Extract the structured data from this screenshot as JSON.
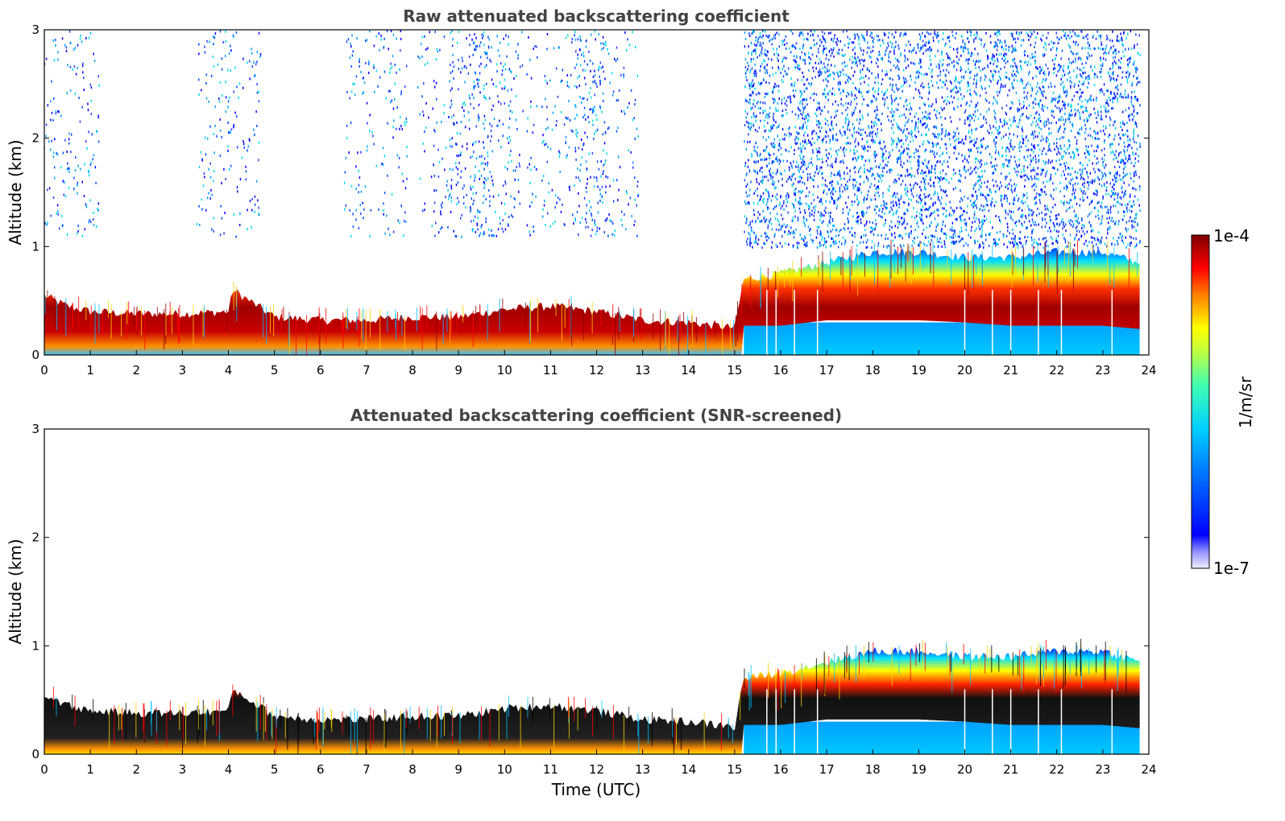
{
  "chart_data": [
    {
      "type": "heatmap",
      "title": "Raw attenuated backscattering coefficient",
      "xlabel": "",
      "ylabel": "Altitude (km)",
      "xlim": [
        0,
        24
      ],
      "ylim": [
        0,
        3
      ],
      "xticks": [
        "0",
        "1",
        "2",
        "3",
        "4",
        "5",
        "6",
        "7",
        "8",
        "9",
        "10",
        "11",
        "12",
        "13",
        "14",
        "15",
        "16",
        "17",
        "18",
        "19",
        "20",
        "21",
        "22",
        "23",
        "24"
      ],
      "yticks": [
        "0",
        "1",
        "2",
        "3"
      ],
      "screened": false
    },
    {
      "type": "heatmap",
      "title": "Attenuated backscattering coefficient (SNR-screened)",
      "xlabel": "Time (UTC)",
      "ylabel": "Altitude (km)",
      "xlim": [
        0,
        24
      ],
      "ylim": [
        0,
        3
      ],
      "xticks": [
        "0",
        "1",
        "2",
        "3",
        "4",
        "5",
        "6",
        "7",
        "8",
        "9",
        "10",
        "11",
        "12",
        "13",
        "14",
        "15",
        "16",
        "17",
        "18",
        "19",
        "20",
        "21",
        "22",
        "23",
        "24"
      ],
      "yticks": [
        "0",
        "1",
        "2",
        "3"
      ],
      "screened": true
    }
  ],
  "colorbar": {
    "max_label": "1e-4",
    "min_label": "1e-7",
    "unit_label": "1/m/sr",
    "colormap": "jet"
  },
  "layer_profile": {
    "time": [
      0,
      0.5,
      1,
      2,
      3,
      4,
      4.1,
      5,
      6,
      7,
      8,
      9,
      10,
      11,
      12,
      13,
      14,
      15,
      15.2,
      16,
      17,
      18,
      19,
      20,
      21,
      22,
      23,
      23.8
    ],
    "top_km": [
      0.55,
      0.45,
      0.4,
      0.38,
      0.38,
      0.4,
      0.6,
      0.35,
      0.32,
      0.32,
      0.35,
      0.35,
      0.42,
      0.45,
      0.4,
      0.32,
      0.3,
      0.25,
      0.7,
      0.75,
      0.85,
      0.95,
      0.95,
      0.9,
      0.9,
      0.95,
      0.95,
      0.85
    ],
    "core_km": [
      0.3,
      0.25,
      0.2,
      0.2,
      0.2,
      0.2,
      0.3,
      0.18,
      0.15,
      0.15,
      0.18,
      0.18,
      0.22,
      0.22,
      0.2,
      0.15,
      0.15,
      0.15,
      0.45,
      0.45,
      0.5,
      0.5,
      0.5,
      0.48,
      0.45,
      0.45,
      0.45,
      0.42
    ]
  },
  "noise_region": {
    "start_hour": 15.2,
    "end_hour": 23.8,
    "min_km": 1.0,
    "max_km": 3.0
  }
}
